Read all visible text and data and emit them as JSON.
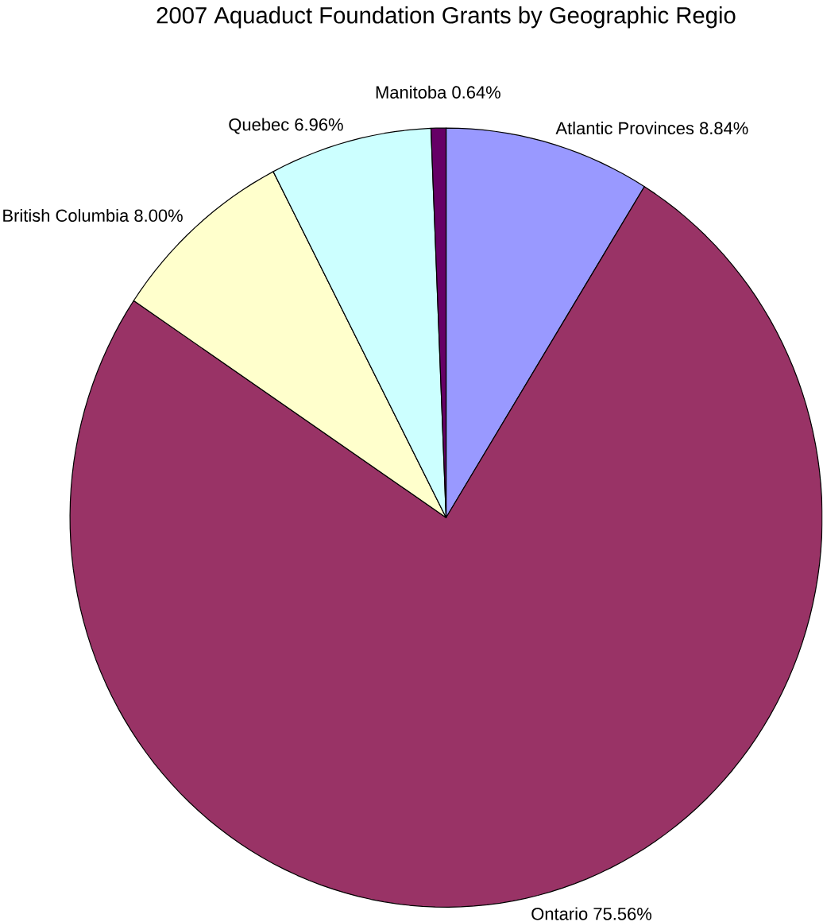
{
  "chart_data": {
    "type": "pie",
    "title": "2007 Aquaduct Foundation Grants by Geographic Regio",
    "categories": [
      "Atlantic Provinces",
      "Ontario",
      "British Columbia",
      "Quebec",
      "Manitoba"
    ],
    "values": [
      8.84,
      75.56,
      8.0,
      6.96,
      0.64
    ],
    "value_labels": [
      "8.84%",
      "75.56%",
      "8.00%",
      "6.96%",
      "0.64%"
    ],
    "colors": [
      "#9999ff",
      "#993366",
      "#ffffcc",
      "#ccffff",
      "#660066"
    ]
  }
}
